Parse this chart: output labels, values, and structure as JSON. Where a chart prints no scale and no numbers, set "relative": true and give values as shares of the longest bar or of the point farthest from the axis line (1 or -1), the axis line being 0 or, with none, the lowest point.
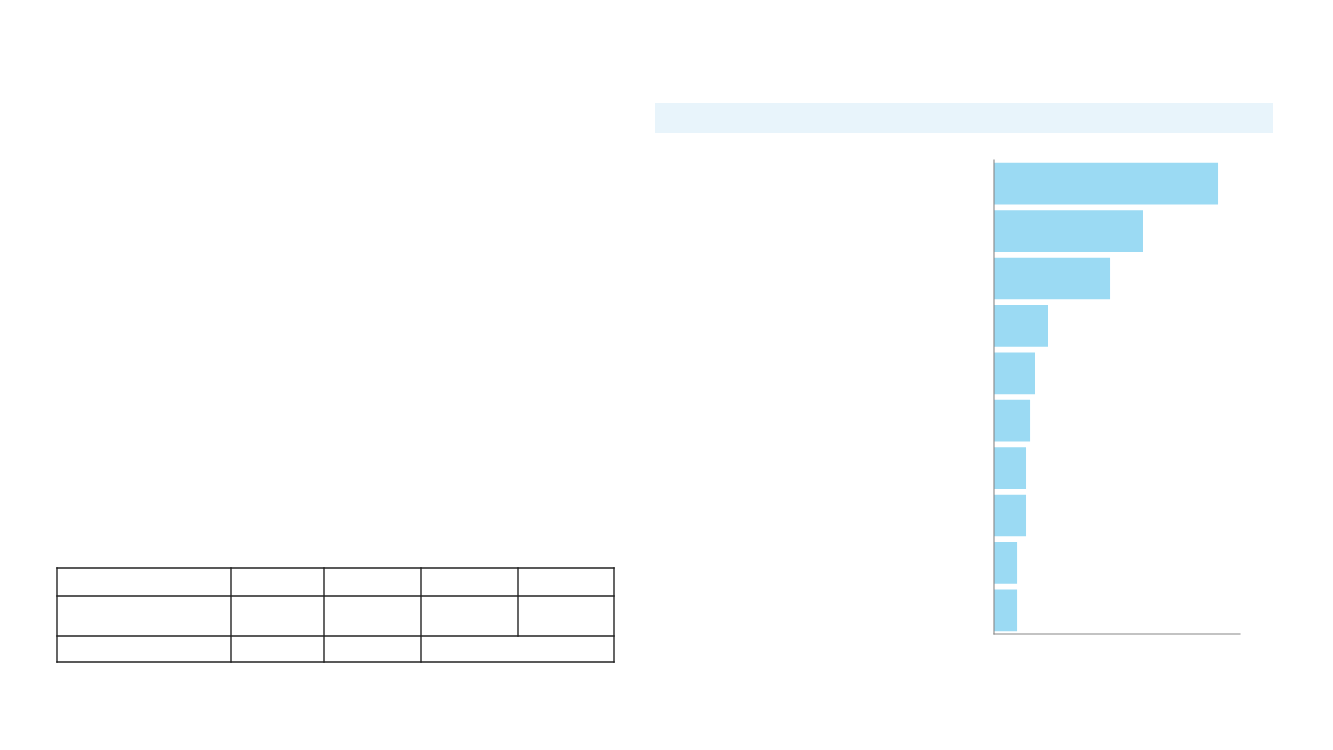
{
  "chart_data": {
    "type": "bar",
    "orientation": "horizontal",
    "relative": true,
    "categories": [
      null,
      null,
      null,
      null,
      null,
      null,
      null,
      null,
      null,
      null
    ],
    "values": [
      1,
      0.665,
      0.518,
      0.241,
      0.183,
      0.161,
      0.143,
      0.143,
      0.103,
      0.103
    ],
    "color": "#9bdaf3",
    "grid": false,
    "legend": false
  }
}
